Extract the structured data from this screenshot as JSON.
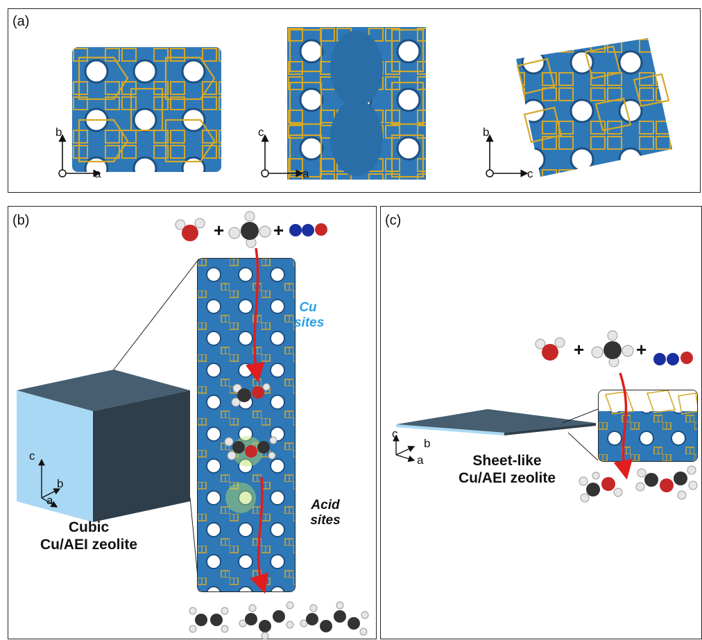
{
  "panel_a": {
    "label": "(a)",
    "views": [
      {
        "vertical_axis": "b",
        "horizontal_axis": "a"
      },
      {
        "vertical_axis": "c",
        "horizontal_axis": "a"
      },
      {
        "vertical_axis": "b",
        "horizontal_axis": "c"
      }
    ]
  },
  "panel_b": {
    "label": "(b)",
    "crystal_label_line1": "Cubic",
    "crystal_label_line2": "Cu/AEI zeolite",
    "axes": {
      "c": "c",
      "b": "b",
      "a": "a"
    },
    "cu_sites_line1": "Cu",
    "cu_sites_line2": "sites",
    "acid_sites_line1": "Acid",
    "acid_sites_line2": "sites",
    "plus_symbol": "+"
  },
  "panel_c": {
    "label": "(c)",
    "crystal_label_line1": "Sheet-like",
    "crystal_label_line2": "Cu/AEI zeolite",
    "axes": {
      "c": "c",
      "b": "b",
      "a": "a"
    },
    "plus_symbol": "+"
  },
  "colors": {
    "framework_blue": "#2f78b8",
    "framework_gold": "#d4a82a",
    "cube_top": "#465e6f",
    "cube_front": "#2e3e4a",
    "cube_side": "#a9d8f4",
    "arrow_red": "#e11d1d",
    "cu_label": "#2aa0e6"
  },
  "icons": [
    "water-molecule-icon",
    "methane-molecule-icon",
    "no-molecule-icon",
    "dme-molecule-icon",
    "ethene-molecule-icon",
    "propene-molecule-icon",
    "butene-molecule-icon"
  ]
}
